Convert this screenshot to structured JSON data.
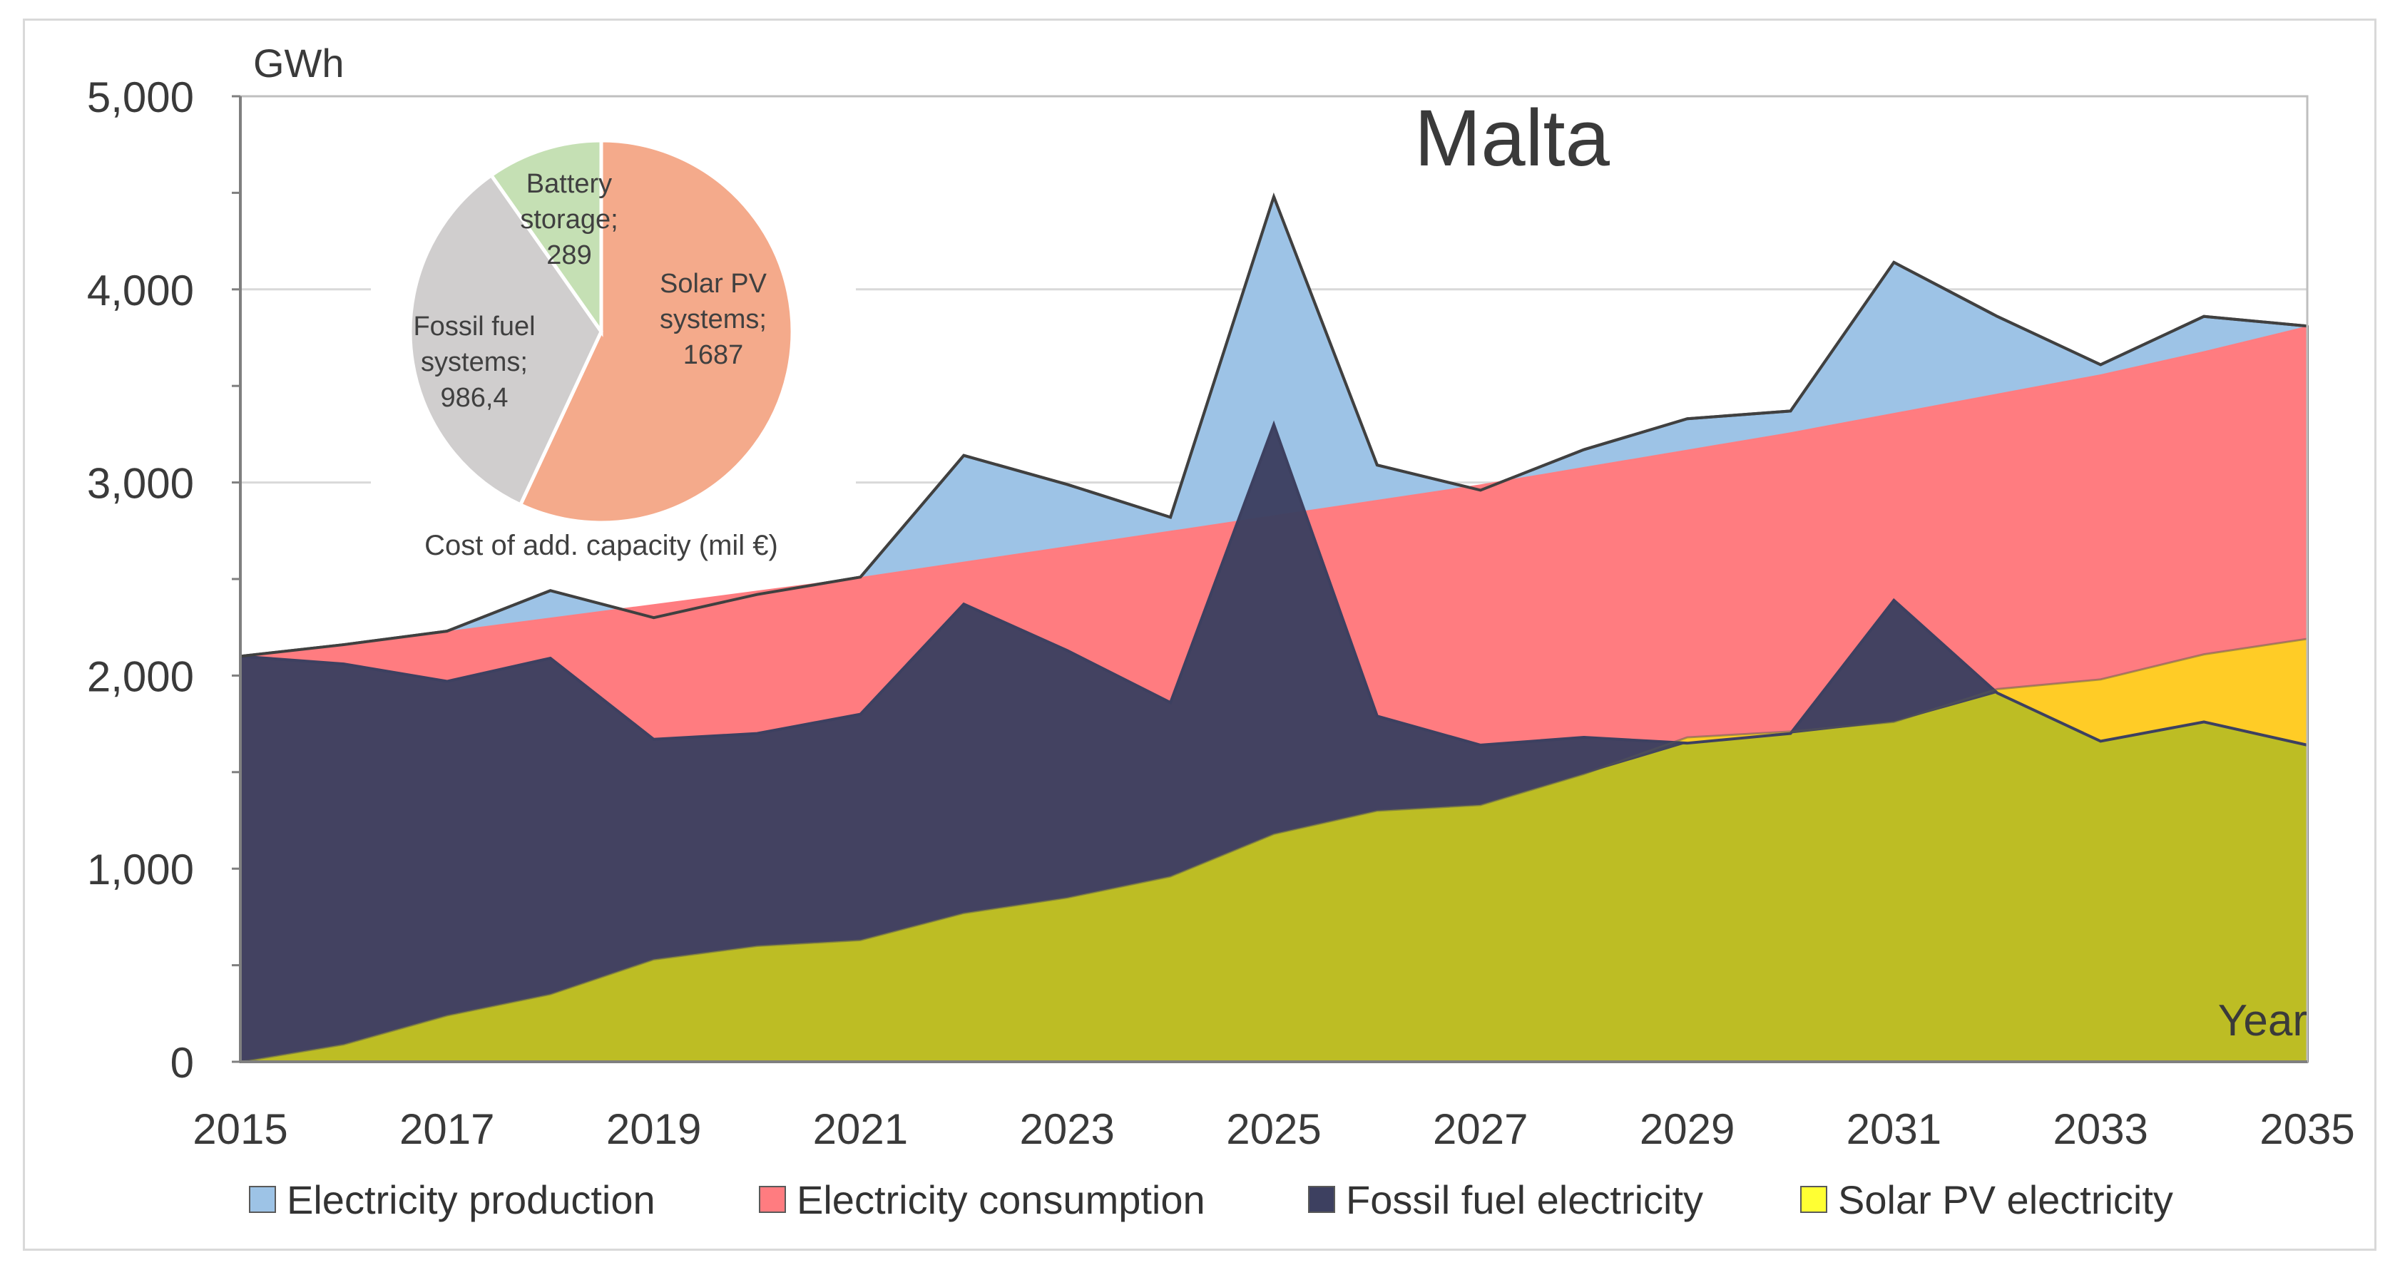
{
  "chart_data": {
    "type": "area",
    "title": "Malta",
    "xlabel": "Year",
    "ylabel": "GWh",
    "xlim": [
      2015,
      2035
    ],
    "ylim": [
      0,
      5000
    ],
    "x": [
      2015,
      2016,
      2017,
      2018,
      2019,
      2020,
      2021,
      2022,
      2023,
      2024,
      2025,
      2026,
      2027,
      2028,
      2029,
      2030,
      2031,
      2032,
      2033,
      2034,
      2035
    ],
    "x_ticks": [
      2015,
      2017,
      2019,
      2021,
      2023,
      2025,
      2027,
      2029,
      2031,
      2033,
      2035
    ],
    "y_ticks": [
      0,
      1000,
      2000,
      3000,
      4000,
      5000
    ],
    "y_tick_labels": [
      "0",
      "1,000",
      "2,000",
      "3,000",
      "4,000",
      "5,000"
    ],
    "x_tick_labels": [
      "2015",
      "2017",
      "2019",
      "2021",
      "2023",
      "2025",
      "2027",
      "2029",
      "2031",
      "2033",
      "2035"
    ],
    "series": [
      {
        "name": "Electricity production",
        "color": "#9dc3e6",
        "values": [
          2100,
          2160,
          2230,
          2440,
          2300,
          2420,
          2510,
          3140,
          2990,
          2820,
          4480,
          3090,
          2960,
          3170,
          3330,
          3370,
          4140,
          3860,
          3610,
          3860,
          3810
        ]
      },
      {
        "name": "Electricity consumption",
        "color": "#ff7c80",
        "values": [
          2100,
          2165,
          2230,
          2300,
          2370,
          2440,
          2510,
          2590,
          2670,
          2750,
          2830,
          2910,
          2990,
          3080,
          3170,
          3260,
          3360,
          3460,
          3560,
          3680,
          3810
        ]
      },
      {
        "name": "Fossil fuel electricity",
        "color": "#3d4060",
        "values": [
          2100,
          2060,
          1970,
          2090,
          1670,
          1700,
          1800,
          2370,
          2130,
          1860,
          3300,
          1790,
          1640,
          1680,
          1650,
          1700,
          2390,
          1910,
          1660,
          1760,
          1640
        ]
      },
      {
        "name": "Solar PV electricity",
        "color": "#ffcc26",
        "values": [
          0,
          90,
          240,
          350,
          530,
          600,
          630,
          770,
          850,
          960,
          1180,
          1300,
          1330,
          1490,
          1680,
          1710,
          1760,
          1930,
          1980,
          2110,
          2190
        ]
      }
    ],
    "overlap_color": "#bdbd24",
    "legend": [
      "Electricity production",
      "Electricity consumption",
      "Fossil fuel electricity",
      "Solar PV electricity"
    ],
    "legend_position": "bottom",
    "inset_pie": {
      "caption": "Cost of add. capacity (mil €)",
      "slices": [
        {
          "label_lines": [
            "Solar PV",
            "systems;",
            "1687"
          ],
          "value": 1687,
          "color": "#f4aa8b"
        },
        {
          "label_lines": [
            "Fossil fuel",
            "systems;",
            "986,4"
          ],
          "value": 986.4,
          "color": "#d0cece"
        },
        {
          "label_lines": [
            "Battery",
            "storage;",
            "289"
          ],
          "value": 289,
          "color": "#c5e0b4"
        }
      ]
    }
  }
}
